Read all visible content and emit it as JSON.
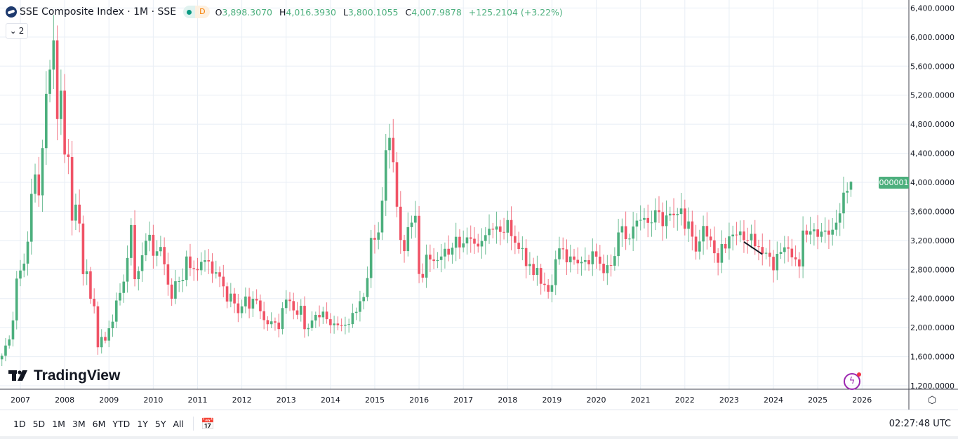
{
  "header": {
    "symbol_title": "SSE Composite Index · 1M · SSE",
    "market_status_letter": "D",
    "ohlc": {
      "open_label": "O",
      "open": "3,898.3070",
      "high_label": "H",
      "high": "4,016.3930",
      "low_label": "L",
      "low": "3,800.1055",
      "close_label": "C",
      "close": "4,007.9878",
      "change": "+125.2104 (+3.22%)"
    },
    "indicators_count": "2"
  },
  "price_badge": "000001",
  "logo_text": "TradingView",
  "toolbar": {
    "ranges": [
      "1D",
      "5D",
      "1M",
      "3M",
      "6M",
      "YTD",
      "1Y",
      "5Y",
      "All"
    ],
    "clock": "02:27:48 UTC"
  },
  "colors": {
    "up": "#4caf7d",
    "down": "#f05366",
    "grid": "#e8eef5",
    "badge": "#4caf7d",
    "drawing": "#131722"
  },
  "chart_data": {
    "type": "candlestick",
    "interval": "1M",
    "y_ticks": [
      "1,200.0000",
      "1,600.0000",
      "2,000.0000",
      "2,400.0000",
      "2,800.0000",
      "3,200.0000",
      "3,600.0000",
      "4,000.0000",
      "4,400.0000",
      "4,800.0000",
      "5,200.0000",
      "5,600.0000",
      "6,000.0000",
      "6,400.0000"
    ],
    "y_tick_values": [
      1200,
      1600,
      2000,
      2400,
      2800,
      3200,
      3600,
      4000,
      4400,
      4800,
      5200,
      5600,
      6000,
      6400
    ],
    "ylim": [
      1200,
      6400
    ],
    "x_ticks": [
      "2007",
      "2008",
      "2009",
      "2010",
      "2011",
      "2012",
      "2013",
      "2014",
      "2015",
      "2016",
      "2017",
      "2018",
      "2019",
      "2020",
      "2021",
      "2022",
      "2023",
      "2024",
      "2025",
      "2026"
    ],
    "grid": true,
    "last_candle": {
      "t": "2025-10",
      "o": 3898.307,
      "h": 4016.393,
      "l": 3800.1055,
      "c": 4007.9878
    },
    "trend_line": {
      "from": [
        "2023-05",
        3180
      ],
      "to": [
        "2023-10",
        3010
      ]
    },
    "closes": [
      [
        "2006-08",
        1612
      ],
      [
        "2006-09",
        1753
      ],
      [
        "2006-10",
        1837
      ],
      [
        "2006-11",
        2099
      ],
      [
        "2006-12",
        2675
      ],
      [
        "2007-01",
        2786
      ],
      [
        "2007-02",
        2881
      ],
      [
        "2007-03",
        3183
      ],
      [
        "2007-04",
        3841
      ],
      [
        "2007-05",
        4109
      ],
      [
        "2007-06",
        3821
      ],
      [
        "2007-07",
        4471
      ],
      [
        "2007-08",
        5218
      ],
      [
        "2007-09",
        5552
      ],
      [
        "2007-10",
        5955
      ],
      [
        "2007-11",
        4871
      ],
      [
        "2007-12",
        5262
      ],
      [
        "2008-01",
        4383
      ],
      [
        "2008-02",
        4348
      ],
      [
        "2008-03",
        3473
      ],
      [
        "2008-04",
        3693
      ],
      [
        "2008-05",
        3433
      ],
      [
        "2008-06",
        2736
      ],
      [
        "2008-07",
        2775
      ],
      [
        "2008-08",
        2397
      ],
      [
        "2008-09",
        2293
      ],
      [
        "2008-10",
        1729
      ],
      [
        "2008-11",
        1871
      ],
      [
        "2008-12",
        1821
      ],
      [
        "2009-01",
        1991
      ],
      [
        "2009-02",
        2082
      ],
      [
        "2009-03",
        2373
      ],
      [
        "2009-04",
        2477
      ],
      [
        "2009-05",
        2633
      ],
      [
        "2009-06",
        2959
      ],
      [
        "2009-07",
        3412
      ],
      [
        "2009-08",
        2667
      ],
      [
        "2009-09",
        2779
      ],
      [
        "2009-10",
        2996
      ],
      [
        "2009-11",
        3195
      ],
      [
        "2009-12",
        3277
      ],
      [
        "2010-01",
        2989
      ],
      [
        "2010-02",
        3051
      ],
      [
        "2010-03",
        3110
      ],
      [
        "2010-04",
        2871
      ],
      [
        "2010-05",
        2592
      ],
      [
        "2010-06",
        2398
      ],
      [
        "2010-07",
        2638
      ],
      [
        "2010-08",
        2639
      ],
      [
        "2010-09",
        2656
      ],
      [
        "2010-10",
        2979
      ],
      [
        "2010-11",
        2820
      ],
      [
        "2010-12",
        2808
      ],
      [
        "2011-01",
        2790
      ],
      [
        "2011-02",
        2905
      ],
      [
        "2011-03",
        2928
      ],
      [
        "2011-04",
        2911
      ],
      [
        "2011-05",
        2743
      ],
      [
        "2011-06",
        2762
      ],
      [
        "2011-07",
        2701
      ],
      [
        "2011-08",
        2568
      ],
      [
        "2011-09",
        2359
      ],
      [
        "2011-10",
        2468
      ],
      [
        "2011-11",
        2333
      ],
      [
        "2011-12",
        2199
      ],
      [
        "2012-01",
        2292
      ],
      [
        "2012-02",
        2428
      ],
      [
        "2012-03",
        2262
      ],
      [
        "2012-04",
        2396
      ],
      [
        "2012-05",
        2373
      ],
      [
        "2012-06",
        2225
      ],
      [
        "2012-07",
        2103
      ],
      [
        "2012-08",
        2047
      ],
      [
        "2012-09",
        2086
      ],
      [
        "2012-10",
        2069
      ],
      [
        "2012-11",
        1980
      ],
      [
        "2012-12",
        2269
      ],
      [
        "2013-01",
        2385
      ],
      [
        "2013-02",
        2365
      ],
      [
        "2013-03",
        2237
      ],
      [
        "2013-04",
        2177
      ],
      [
        "2013-05",
        2300
      ],
      [
        "2013-06",
        1979
      ],
      [
        "2013-07",
        1994
      ],
      [
        "2013-08",
        2098
      ],
      [
        "2013-09",
        2175
      ],
      [
        "2013-10",
        2142
      ],
      [
        "2013-11",
        2220
      ],
      [
        "2013-12",
        2116
      ],
      [
        "2014-01",
        2033
      ],
      [
        "2014-02",
        2056
      ],
      [
        "2014-03",
        2033
      ],
      [
        "2014-04",
        2026
      ],
      [
        "2014-05",
        2039
      ],
      [
        "2014-06",
        2048
      ],
      [
        "2014-07",
        2202
      ],
      [
        "2014-08",
        2217
      ],
      [
        "2014-09",
        2364
      ],
      [
        "2014-10",
        2420
      ],
      [
        "2014-11",
        2683
      ],
      [
        "2014-12",
        3235
      ],
      [
        "2015-01",
        3210
      ],
      [
        "2015-02",
        3310
      ],
      [
        "2015-03",
        3748
      ],
      [
        "2015-04",
        4442
      ],
      [
        "2015-05",
        4612
      ],
      [
        "2015-06",
        4277
      ],
      [
        "2015-07",
        3664
      ],
      [
        "2015-08",
        3206
      ],
      [
        "2015-09",
        3053
      ],
      [
        "2015-10",
        3383
      ],
      [
        "2015-11",
        3445
      ],
      [
        "2015-12",
        3539
      ],
      [
        "2016-01",
        2738
      ],
      [
        "2016-02",
        2688
      ],
      [
        "2016-03",
        3004
      ],
      [
        "2016-04",
        2938
      ],
      [
        "2016-05",
        2917
      ],
      [
        "2016-06",
        2930
      ],
      [
        "2016-07",
        2979
      ],
      [
        "2016-08",
        3085
      ],
      [
        "2016-09",
        3005
      ],
      [
        "2016-10",
        3100
      ],
      [
        "2016-11",
        3250
      ],
      [
        "2016-12",
        3104
      ],
      [
        "2017-01",
        3159
      ],
      [
        "2017-02",
        3242
      ],
      [
        "2017-03",
        3223
      ],
      [
        "2017-04",
        3155
      ],
      [
        "2017-05",
        3117
      ],
      [
        "2017-06",
        3192
      ],
      [
        "2017-07",
        3273
      ],
      [
        "2017-08",
        3361
      ],
      [
        "2017-09",
        3349
      ],
      [
        "2017-10",
        3393
      ],
      [
        "2017-11",
        3317
      ],
      [
        "2017-12",
        3307
      ],
      [
        "2018-01",
        3481
      ],
      [
        "2018-02",
        3259
      ],
      [
        "2018-03",
        3169
      ],
      [
        "2018-04",
        3082
      ],
      [
        "2018-05",
        3095
      ],
      [
        "2018-06",
        2847
      ],
      [
        "2018-07",
        2876
      ],
      [
        "2018-08",
        2725
      ],
      [
        "2018-09",
        2821
      ],
      [
        "2018-10",
        2603
      ],
      [
        "2018-11",
        2588
      ],
      [
        "2018-12",
        2494
      ],
      [
        "2019-01",
        2585
      ],
      [
        "2019-02",
        2941
      ],
      [
        "2019-03",
        3091
      ],
      [
        "2019-04",
        3078
      ],
      [
        "2019-05",
        2899
      ],
      [
        "2019-06",
        2979
      ],
      [
        "2019-07",
        2933
      ],
      [
        "2019-08",
        2886
      ],
      [
        "2019-09",
        2905
      ],
      [
        "2019-10",
        2929
      ],
      [
        "2019-11",
        2872
      ],
      [
        "2019-12",
        3050
      ],
      [
        "2020-01",
        2977
      ],
      [
        "2020-02",
        2880
      ],
      [
        "2020-03",
        2750
      ],
      [
        "2020-04",
        2860
      ],
      [
        "2020-05",
        2852
      ],
      [
        "2020-06",
        2985
      ],
      [
        "2020-07",
        3310
      ],
      [
        "2020-08",
        3396
      ],
      [
        "2020-09",
        3218
      ],
      [
        "2020-10",
        3225
      ],
      [
        "2020-11",
        3392
      ],
      [
        "2020-12",
        3473
      ],
      [
        "2021-01",
        3483
      ],
      [
        "2021-02",
        3509
      ],
      [
        "2021-03",
        3442
      ],
      [
        "2021-04",
        3447
      ],
      [
        "2021-05",
        3615
      ],
      [
        "2021-06",
        3591
      ],
      [
        "2021-07",
        3397
      ],
      [
        "2021-08",
        3544
      ],
      [
        "2021-09",
        3568
      ],
      [
        "2021-10",
        3547
      ],
      [
        "2021-11",
        3564
      ],
      [
        "2021-12",
        3640
      ],
      [
        "2022-01",
        3361
      ],
      [
        "2022-02",
        3462
      ],
      [
        "2022-03",
        3252
      ],
      [
        "2022-04",
        3047
      ],
      [
        "2022-05",
        3186
      ],
      [
        "2022-06",
        3399
      ],
      [
        "2022-07",
        3253
      ],
      [
        "2022-08",
        3202
      ],
      [
        "2022-09",
        3024
      ],
      [
        "2022-10",
        2893
      ],
      [
        "2022-11",
        3151
      ],
      [
        "2022-12",
        3089
      ],
      [
        "2023-01",
        3256
      ],
      [
        "2023-02",
        3280
      ],
      [
        "2023-03",
        3273
      ],
      [
        "2023-04",
        3323
      ],
      [
        "2023-05",
        3205
      ],
      [
        "2023-06",
        3202
      ],
      [
        "2023-07",
        3291
      ],
      [
        "2023-08",
        3120
      ],
      [
        "2023-09",
        3110
      ],
      [
        "2023-10",
        3018
      ],
      [
        "2023-11",
        3030
      ],
      [
        "2023-12",
        2975
      ],
      [
        "2024-01",
        2789
      ],
      [
        "2024-02",
        3015
      ],
      [
        "2024-03",
        3041
      ],
      [
        "2024-04",
        3105
      ],
      [
        "2024-05",
        3087
      ],
      [
        "2024-06",
        2967
      ],
      [
        "2024-07",
        2939
      ],
      [
        "2024-08",
        2842
      ],
      [
        "2024-09",
        3336
      ],
      [
        "2024-10",
        3280
      ],
      [
        "2024-11",
        3326
      ],
      [
        "2024-12",
        3352
      ],
      [
        "2025-01",
        3250
      ],
      [
        "2025-02",
        3321
      ],
      [
        "2025-03",
        3336
      ],
      [
        "2025-04",
        3279
      ],
      [
        "2025-05",
        3347
      ],
      [
        "2025-06",
        3444
      ],
      [
        "2025-07",
        3573
      ],
      [
        "2025-08",
        3858
      ],
      [
        "2025-09",
        3883
      ],
      [
        "2025-10",
        4008
      ]
    ]
  }
}
